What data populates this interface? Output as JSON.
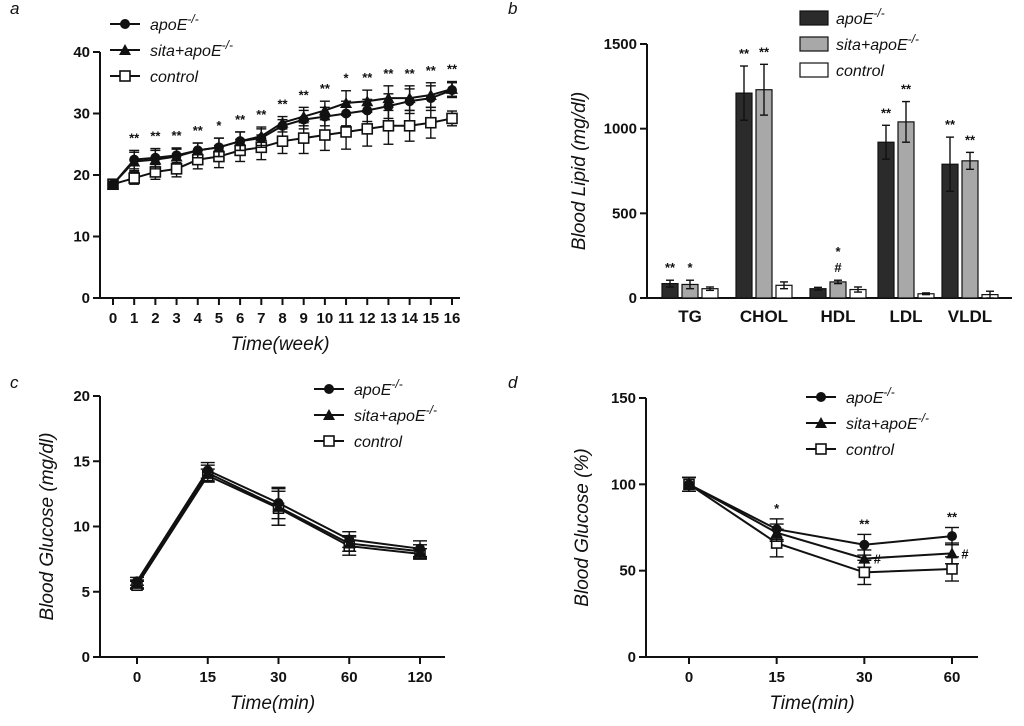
{
  "colors": {
    "apoE": "#2b2b2b",
    "sita": "#a8a8a8",
    "control": "#ffffff",
    "line": "#111111"
  },
  "chart_data": [
    {
      "panel": "a",
      "type": "line",
      "xlabel": "Time(week)",
      "ylabel": "",
      "ylim": [
        0,
        40
      ],
      "yticks": [
        "0",
        "10",
        "20",
        "30",
        "40"
      ],
      "categories": [
        "0",
        "1",
        "2",
        "3",
        "4",
        "5",
        "6",
        "7",
        "8",
        "9",
        "10",
        "11",
        "12",
        "13",
        "14",
        "15",
        "16"
      ],
      "series": [
        {
          "name": "apoE",
          "sup": "-/-",
          "marker": "circle",
          "values": [
            18.5,
            22.5,
            22.8,
            23.2,
            24.0,
            24.5,
            25.5,
            26.0,
            28.0,
            29.0,
            29.5,
            30.0,
            30.5,
            31.2,
            32.0,
            32.5,
            33.8
          ],
          "errors": [
            0.5,
            1.5,
            1.5,
            1.2,
            1.2,
            1.5,
            1.5,
            1.5,
            1.0,
            1.5,
            1.5,
            2.0,
            1.8,
            2.0,
            2.0,
            2.0,
            1.2
          ]
        },
        {
          "name": "sita+apoE",
          "sup": "-/-",
          "marker": "triangle",
          "values": [
            18.5,
            22.2,
            22.5,
            23.0,
            24.0,
            24.5,
            25.5,
            26.3,
            28.5,
            29.5,
            30.5,
            31.7,
            32.0,
            32.5,
            32.5,
            33.0,
            34.0
          ],
          "errors": [
            0.5,
            1.5,
            1.5,
            1.2,
            1.2,
            1.5,
            1.5,
            1.5,
            1.0,
            1.5,
            1.5,
            2.0,
            1.8,
            2.0,
            2.0,
            2.0,
            1.2
          ]
        },
        {
          "name": "control",
          "sup": "",
          "marker": "square-open",
          "values": [
            18.5,
            19.5,
            20.5,
            21.0,
            22.5,
            23.0,
            24.0,
            24.5,
            25.5,
            26.0,
            26.5,
            27.0,
            27.5,
            28.0,
            28.0,
            28.5,
            29.2
          ],
          "errors": [
            0.5,
            1.0,
            1.2,
            1.3,
            1.5,
            1.8,
            1.8,
            2.0,
            2.0,
            2.5,
            2.5,
            2.8,
            2.8,
            3.0,
            2.5,
            2.5,
            1.2
          ]
        }
      ],
      "annotations": [
        "",
        "**",
        "**",
        "**",
        "**",
        "*",
        "**",
        "**",
        "**",
        "**",
        "**",
        "*",
        "**",
        "**",
        "**",
        "**",
        "**"
      ]
    },
    {
      "panel": "b",
      "type": "bar",
      "ylabel": "Blood Lipid (mg/dl)",
      "ylim": [
        0,
        1500
      ],
      "yticks": [
        "0",
        "500",
        "1000",
        "1500"
      ],
      "categories": [
        "TG",
        "CHOL",
        "HDL",
        "LDL",
        "VLDL"
      ],
      "series": [
        {
          "name": "apoE",
          "sup": "-/-",
          "values": [
            85,
            1210,
            55,
            920,
            790
          ],
          "errors": [
            20,
            160,
            8,
            100,
            160
          ]
        },
        {
          "name": "sita+apoE",
          "sup": "-/-",
          "values": [
            80,
            1230,
            95,
            1040,
            810
          ],
          "errors": [
            25,
            150,
            10,
            120,
            50
          ]
        },
        {
          "name": "control",
          "sup": "",
          "values": [
            55,
            75,
            50,
            25,
            20
          ],
          "errors": [
            10,
            20,
            15,
            5,
            20
          ]
        }
      ],
      "annotations": [
        [
          "**",
          "*",
          ""
        ],
        [
          "**",
          "**",
          ""
        ],
        [
          "",
          "* #",
          ""
        ],
        [
          "**",
          "**",
          ""
        ],
        [
          "**",
          "**",
          ""
        ]
      ]
    },
    {
      "panel": "c",
      "type": "line",
      "xlabel": "Time(min)",
      "ylabel": "Blood Glucose (mg/dl)",
      "ylim": [
        0,
        20
      ],
      "yticks": [
        "0",
        "5",
        "10",
        "15",
        "20"
      ],
      "categories": [
        "0",
        "15",
        "30",
        "60",
        "120"
      ],
      "series": [
        {
          "name": "apoE",
          "sup": "-/-",
          "marker": "circle",
          "values": [
            5.8,
            14.3,
            11.8,
            9.0,
            8.3
          ],
          "errors": [
            0.3,
            0.6,
            1.2,
            0.6,
            0.6
          ]
        },
        {
          "name": "sita+apoE",
          "sup": "-/-",
          "marker": "triangle",
          "values": [
            5.6,
            14.1,
            11.5,
            8.7,
            8.1
          ],
          "errors": [
            0.3,
            0.6,
            1.4,
            0.6,
            0.5
          ]
        },
        {
          "name": "control",
          "sup": "",
          "marker": "square-open",
          "values": [
            5.5,
            13.9,
            11.4,
            8.5,
            7.9
          ],
          "errors": [
            0.3,
            0.5,
            1.3,
            0.7,
            0.4
          ]
        }
      ]
    },
    {
      "panel": "d",
      "type": "line",
      "xlabel": "Time(min)",
      "ylabel": "Blood Glucose (%)",
      "ylim": [
        0,
        150
      ],
      "yticks": [
        "0",
        "50",
        "100",
        "150"
      ],
      "categories": [
        "0",
        "15",
        "30",
        "60"
      ],
      "series": [
        {
          "name": "apoE",
          "sup": "-/-",
          "marker": "circle",
          "values": [
            100,
            74,
            65,
            70
          ],
          "errors": [
            4,
            6,
            6,
            5
          ]
        },
        {
          "name": "sita+apoE",
          "sup": "-/-",
          "marker": "triangle",
          "values": [
            100,
            72,
            57,
            60
          ],
          "errors": [
            4,
            5,
            5,
            6
          ]
        },
        {
          "name": "control",
          "sup": "",
          "marker": "square-open",
          "values": [
            100,
            66,
            49,
            51
          ],
          "errors": [
            4,
            8,
            7,
            7
          ]
        }
      ],
      "annotations": [
        [
          "",
          ""
        ],
        [
          "*",
          ""
        ],
        [
          "**",
          "#"
        ],
        [
          "**",
          "#"
        ]
      ]
    }
  ]
}
